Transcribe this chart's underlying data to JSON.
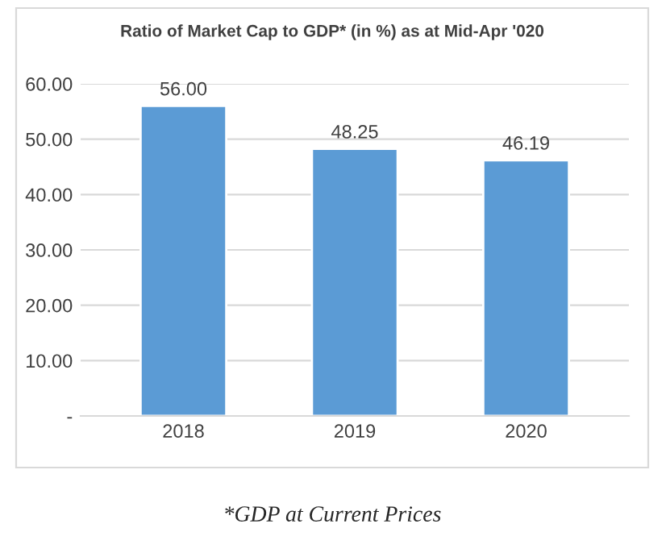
{
  "chart_data": {
    "type": "bar",
    "title": "Ratio of Market Cap to GDP* (in %) as at Mid-Apr '020",
    "categories": [
      "2018",
      "2019",
      "2020"
    ],
    "values": [
      56,
      48.25,
      46.19
    ],
    "value_labels": [
      "56.00",
      "48.25",
      "46.19"
    ],
    "color": "#5b9bd5",
    "ylim": [
      0,
      60
    ],
    "yticks": [
      {
        "value": 0,
        "label": "-"
      },
      {
        "value": 10,
        "label": "10.00"
      },
      {
        "value": 20,
        "label": "20.00"
      },
      {
        "value": 30,
        "label": "30.00"
      },
      {
        "value": 40,
        "label": "40.00"
      },
      {
        "value": 50,
        "label": "50.00"
      },
      {
        "value": 60,
        "label": "60.00"
      }
    ],
    "grid": "y",
    "annotations": [
      "*GDP at Current Prices"
    ]
  }
}
